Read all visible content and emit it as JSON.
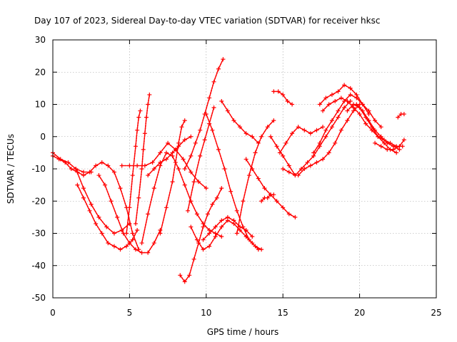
{
  "chart_data": {
    "type": "scatter",
    "title": "Day 107 of 2023, Sidereal Day-to-day VTEC variation (SDTVAR) for receiver hksc",
    "xlabel": "GPS time / hours",
    "ylabel": "SDTVAR / TECUs",
    "xlim": [
      0,
      25
    ],
    "ylim": [
      -50,
      30
    ],
    "xticks": [
      "0",
      "5",
      "10",
      "15",
      "20",
      "25"
    ],
    "yticks": [
      "30",
      "20",
      "10",
      "0",
      "-10",
      "-20",
      "-30",
      "-40",
      "-50"
    ],
    "xtick_values": [
      0,
      5,
      10,
      15,
      20,
      25
    ],
    "ytick_values": [
      30,
      20,
      10,
      0,
      -10,
      -20,
      -30,
      -40,
      -50
    ],
    "grid": true,
    "marker": "+",
    "color": "#ff0000",
    "series": [
      {
        "x": [
          0.0,
          0.5,
          1.0,
          1.5,
          2.0,
          2.5
        ],
        "y": [
          -5,
          -7,
          -8,
          -10,
          -11,
          -11
        ]
      },
      {
        "x": [
          0.0,
          0.4,
          0.8,
          1.2,
          1.6,
          2.0,
          2.4,
          2.8,
          3.2,
          3.6,
          4.0,
          4.4,
          4.8,
          5.2,
          5.6
        ],
        "y": [
          -6,
          -7,
          -8,
          -10,
          -11,
          -12,
          -11,
          -9,
          -8,
          -9,
          -11,
          -16,
          -22,
          -30,
          -35
        ]
      },
      {
        "x": [
          1.6,
          2.0,
          2.4,
          2.8,
          3.2,
          3.6,
          4.0,
          4.4,
          4.8,
          5.2,
          5.5
        ],
        "y": [
          -15,
          -19,
          -23,
          -27,
          -30,
          -33,
          -34,
          -35,
          -34,
          -32,
          -29
        ]
      },
      {
        "x": [
          1.5,
          2.0,
          2.5,
          3.0,
          3.5,
          4.0,
          4.5,
          5.0
        ],
        "y": [
          -10,
          -16,
          -21,
          -25,
          -28,
          -30,
          -29,
          -27
        ]
      },
      {
        "x": [
          3.0,
          3.4,
          3.8,
          4.2,
          4.6,
          5.0,
          5.4,
          5.8,
          6.2,
          6.6,
          7.0
        ],
        "y": [
          -12,
          -15,
          -20,
          -25,
          -30,
          -33,
          -35,
          -36,
          -36,
          -33,
          -29
        ]
      },
      {
        "x": [
          4.8,
          5.0,
          5.2,
          5.4,
          5.5,
          5.6,
          5.7
        ],
        "y": [
          -30,
          -22,
          -12,
          -3,
          2,
          6,
          8
        ]
      },
      {
        "x": [
          5.4,
          5.6,
          5.8,
          5.9,
          6.0,
          6.1,
          6.2,
          6.3
        ],
        "y": [
          -27,
          -19,
          -10,
          -4,
          1,
          6,
          10,
          13
        ]
      },
      {
        "x": [
          4.5,
          5.0,
          5.5,
          6.0,
          6.5,
          7.0,
          7.5,
          8.0,
          8.5,
          9.0,
          9.5,
          10.0
        ],
        "y": [
          -9,
          -9,
          -9,
          -9,
          -8,
          -5,
          -2,
          -4,
          -7,
          -11,
          -14,
          -16
        ]
      },
      {
        "x": [
          5.8,
          6.2,
          6.6,
          7.0,
          7.4,
          7.8,
          8.2,
          8.6,
          9.0,
          9.4,
          9.8,
          10.2,
          10.6,
          11.0
        ],
        "y": [
          -33,
          -24,
          -16,
          -9,
          -5,
          -6,
          -10,
          -15,
          -20,
          -24,
          -27,
          -29,
          -30,
          -31
        ]
      },
      {
        "x": [
          6.2,
          6.6,
          7.0,
          7.4,
          7.8,
          8.2,
          8.6,
          9.0
        ],
        "y": [
          -12,
          -10,
          -8,
          -7,
          -5,
          -3,
          -1,
          0
        ]
      },
      {
        "x": [
          7.0,
          7.4,
          7.8,
          8.0,
          8.2,
          8.4,
          8.6
        ],
        "y": [
          -30,
          -22,
          -14,
          -8,
          -2,
          3,
          5
        ]
      },
      {
        "x": [
          8.6,
          9.0,
          9.3,
          9.6,
          9.9,
          10.2,
          10.5,
          10.8,
          11.1
        ],
        "y": [
          -10,
          -6,
          -2,
          2,
          7,
          12,
          17,
          21,
          24
        ]
      },
      {
        "x": [
          8.8,
          9.2,
          9.6,
          9.9,
          10.2,
          10.5
        ],
        "y": [
          -23,
          -14,
          -6,
          -1,
          4,
          9
        ]
      },
      {
        "x": [
          8.3,
          8.6,
          8.9,
          9.2,
          9.5,
          9.8,
          10.1,
          10.4,
          10.7,
          11.0
        ],
        "y": [
          -43,
          -45,
          -43,
          -38,
          -33,
          -28,
          -24,
          -21,
          -19,
          -16
        ]
      },
      {
        "x": [
          9.0,
          9.4,
          9.8,
          10.2,
          10.6,
          11.0,
          11.4,
          11.8,
          12.2,
          12.6,
          13.0,
          13.4
        ],
        "y": [
          -28,
          -32,
          -35,
          -34,
          -31,
          -28,
          -26,
          -27,
          -29,
          -31,
          -33,
          -35
        ]
      },
      {
        "x": [
          10.0,
          10.4,
          10.8,
          11.2,
          11.6,
          12.0,
          12.4,
          12.8,
          13.2,
          13.6
        ],
        "y": [
          7,
          2,
          -4,
          -10,
          -17,
          -23,
          -28,
          -32,
          -34,
          -35
        ]
      },
      {
        "x": [
          9.8,
          10.2,
          10.6,
          11.0,
          11.4,
          11.8,
          12.2,
          12.6,
          13.0
        ],
        "y": [
          -32,
          -30,
          -28,
          -26,
          -25,
          -26,
          -28,
          -29,
          -31
        ]
      },
      {
        "x": [
          11.0,
          11.4,
          11.8,
          12.2,
          12.6,
          13.0,
          13.4
        ],
        "y": [
          11,
          8,
          5,
          3,
          1,
          0,
          -2
        ]
      },
      {
        "x": [
          12.0,
          12.4,
          12.8,
          13.2,
          13.6,
          14.0,
          14.4
        ],
        "y": [
          -30,
          -20,
          -12,
          -5,
          0,
          3,
          5
        ]
      },
      {
        "x": [
          12.6,
          13.0,
          13.4,
          13.8,
          14.2,
          14.6,
          15.0,
          15.4,
          15.8
        ],
        "y": [
          -7,
          -10,
          -13,
          -16,
          -18,
          -20,
          -22,
          -24,
          -25
        ]
      },
      {
        "x": [
          13.6,
          13.8,
          14.0,
          14.2,
          14.4
        ],
        "y": [
          -20,
          -19,
          -19,
          -18,
          -18
        ]
      },
      {
        "x": [
          14.2,
          14.6,
          15.0,
          15.4,
          15.8
        ],
        "y": [
          0,
          -3,
          -6,
          -9,
          -12
        ]
      },
      {
        "x": [
          14.4,
          14.7,
          15.0,
          15.3,
          15.6
        ],
        "y": [
          14,
          14,
          13,
          11,
          10
        ]
      },
      {
        "x": [
          14.8,
          15.2,
          15.6,
          16.0,
          16.4,
          16.8,
          17.2,
          17.6
        ],
        "y": [
          -5,
          -2,
          1,
          3,
          2,
          1,
          2,
          3
        ]
      },
      {
        "x": [
          15.0,
          15.4,
          15.8,
          16.2,
          16.6,
          17.0,
          17.4,
          17.8,
          18.2,
          18.6,
          19.0,
          19.4
        ],
        "y": [
          -10,
          -11,
          -12,
          -10,
          -8,
          -6,
          -3,
          0,
          3,
          6,
          9,
          11
        ]
      },
      {
        "x": [
          16.0,
          16.4,
          16.8,
          17.2,
          17.6,
          18.0,
          18.4,
          18.8,
          19.2,
          19.6,
          20.0
        ],
        "y": [
          -12,
          -10,
          -9,
          -8,
          -7,
          -5,
          -2,
          2,
          5,
          8,
          10
        ]
      },
      {
        "x": [
          17.4,
          17.8,
          18.2,
          18.6,
          19.0,
          19.4,
          19.8,
          20.2,
          20.6
        ],
        "y": [
          10,
          12,
          13,
          14,
          16,
          15,
          13,
          10,
          7
        ]
      },
      {
        "x": [
          17.0,
          17.4,
          17.8,
          18.2,
          18.6,
          19.0,
          19.4,
          19.8,
          20.2,
          20.6,
          21.0,
          21.4
        ],
        "y": [
          -5,
          -2,
          2,
          5,
          8,
          11,
          13,
          12,
          10,
          8,
          5,
          3
        ]
      },
      {
        "x": [
          17.6,
          18.0,
          18.4,
          18.8,
          19.2,
          19.6,
          20.0,
          20.4,
          20.8,
          21.2,
          21.6,
          22.0,
          22.4,
          22.8
        ],
        "y": [
          8,
          10,
          11,
          12,
          11,
          9,
          7,
          4,
          2,
          0,
          -1,
          -2,
          -3,
          -3
        ]
      },
      {
        "x": [
          19.2,
          19.6,
          20.0,
          20.4,
          20.8,
          21.2,
          21.6,
          22.0,
          22.4
        ],
        "y": [
          8,
          10,
          9,
          6,
          3,
          0,
          -2,
          -4,
          -5
        ]
      },
      {
        "x": [
          19.8,
          20.2,
          20.6,
          21.0,
          21.4,
          21.8,
          22.2,
          22.6
        ],
        "y": [
          10,
          8,
          5,
          2,
          0,
          -2,
          -3,
          -4
        ]
      },
      {
        "x": [
          21.0,
          21.4,
          21.8,
          22.2,
          22.6,
          22.9
        ],
        "y": [
          -2,
          -3,
          -4,
          -4,
          -3,
          -1
        ]
      },
      {
        "x": [
          22.5,
          22.7,
          22.9
        ],
        "y": [
          6,
          7,
          7
        ]
      }
    ]
  }
}
